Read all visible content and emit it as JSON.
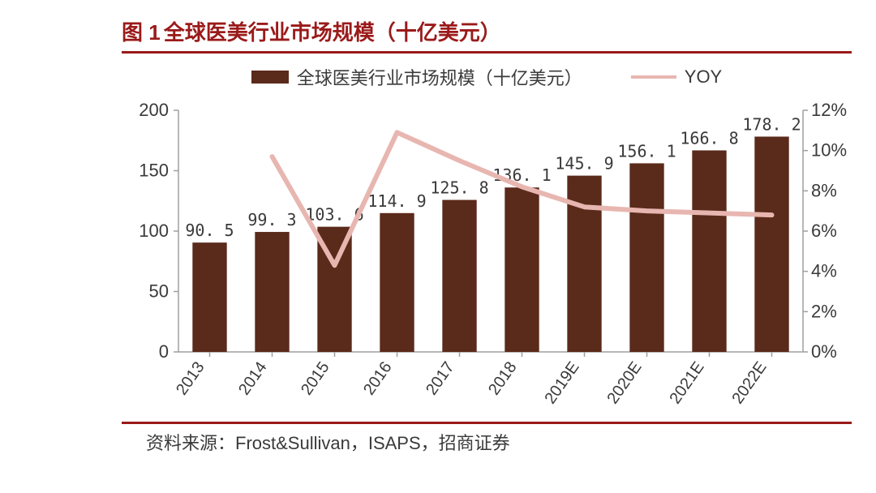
{
  "title_prefix": "图 1",
  "title": "全球医美行业市场规模（十亿美元）",
  "source": "资料来源：Frost&Sullivan，ISAPS，招商证券",
  "chart": {
    "type": "bar+line",
    "categories": [
      "2013",
      "2014",
      "2015",
      "2016",
      "2017",
      "2018",
      "2019E",
      "2020E",
      "2021E",
      "2022E"
    ],
    "bar_series": {
      "label": "全球医美行业市场规模（十亿美元）",
      "values": [
        90.5,
        99.3,
        103.6,
        114.9,
        125.8,
        136.1,
        145.9,
        156.1,
        166.8,
        178.2
      ],
      "color": "#5a2a1a"
    },
    "line_series": {
      "label": "YOY",
      "values_pct": [
        null,
        9.7,
        4.3,
        10.9,
        9.5,
        8.2,
        7.2,
        7.0,
        6.9,
        6.8
      ],
      "color": "#e8b6b0",
      "line_width": 6
    },
    "left_axis": {
      "min": 0,
      "max": 200,
      "tick_step": 50,
      "color": "#3a3a3a",
      "fontsize": 22
    },
    "right_axis": {
      "min": 0,
      "max": 12,
      "tick_step": 2,
      "suffix": "%",
      "color": "#3a3a3a",
      "fontsize": 22
    },
    "grid": {
      "show": false
    },
    "axis_line_color": "#9f9f9f",
    "category_label_rotation_deg": -55,
    "category_fontsize": 20,
    "data_label_fontsize": 20,
    "data_label_color": "#3a3a3a",
    "bar_width_ratio": 0.55,
    "background_color": "#ffffff",
    "title_color": "#9a1a1a",
    "title_fontsize": 26
  }
}
